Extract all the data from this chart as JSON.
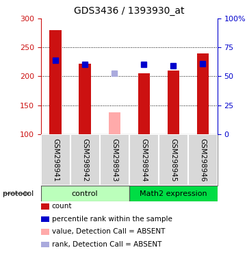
{
  "title": "GDS3436 / 1393930_at",
  "samples": [
    "GSM298941",
    "GSM298942",
    "GSM298943",
    "GSM298944",
    "GSM298945",
    "GSM298946"
  ],
  "bar_values": [
    280,
    222,
    null,
    205,
    210,
    240
  ],
  "bar_color_present": "#cc1111",
  "bar_color_absent": "#ffaaaa",
  "absent_bar_value": 138,
  "absent_bar_index": 2,
  "percentile_present": [
    228,
    220,
    null,
    221,
    218,
    222
  ],
  "percentile_absent_value": 205,
  "percentile_absent_index": 2,
  "percentile_color_present": "#0000cc",
  "percentile_color_absent": "#aaaadd",
  "ylim_left": [
    100,
    300
  ],
  "yticks_left": [
    100,
    150,
    200,
    250,
    300
  ],
  "yticks_right": [
    0,
    25,
    50,
    75,
    100
  ],
  "yticklabels_right": [
    "0",
    "25",
    "50",
    "75",
    "100%"
  ],
  "left_axis_color": "#cc1111",
  "right_axis_color": "#0000cc",
  "group_colors": [
    "#bbffbb",
    "#00dd44"
  ],
  "group_labels": [
    "control",
    "Math2 expression"
  ],
  "legend_items": [
    {
      "label": "count",
      "color": "#cc1111"
    },
    {
      "label": "percentile rank within the sample",
      "color": "#0000cc"
    },
    {
      "label": "value, Detection Call = ABSENT",
      "color": "#ffaaaa"
    },
    {
      "label": "rank, Detection Call = ABSENT",
      "color": "#aaaadd"
    }
  ],
  "sample_bg_color": "#d8d8d8",
  "bar_width": 0.4,
  "percentile_marker_size": 6
}
